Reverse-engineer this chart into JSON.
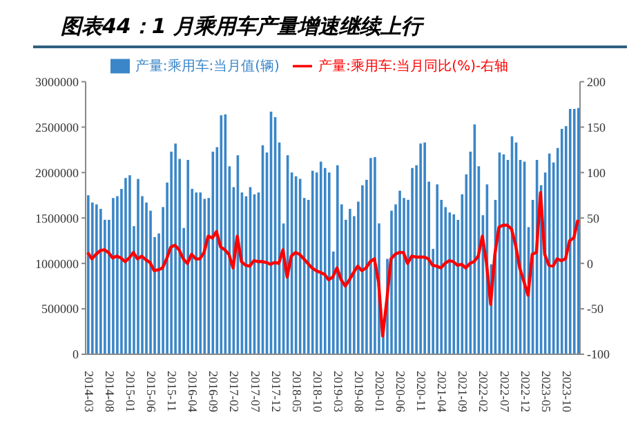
{
  "chart_data": {
    "type": "bar",
    "title": "图表44：1 月乘用车产量增速继续上行",
    "categories": [
      "2014-03",
      null,
      null,
      null,
      null,
      "2014-08",
      null,
      null,
      null,
      null,
      "2015-01",
      null,
      null,
      null,
      null,
      "2015-06",
      null,
      null,
      null,
      null,
      "2015-11",
      null,
      null,
      null,
      null,
      "2016-04",
      null,
      null,
      null,
      null,
      "2016-09",
      null,
      null,
      null,
      null,
      "2017-02",
      null,
      null,
      null,
      null,
      "2017-07",
      null,
      null,
      null,
      null,
      "2017-12",
      null,
      null,
      null,
      null,
      "2018-05",
      null,
      null,
      null,
      null,
      "2018-10",
      null,
      null,
      null,
      null,
      "2019-03",
      null,
      null,
      null,
      null,
      "2019-08",
      null,
      null,
      null,
      null,
      "2020-01",
      null,
      null,
      null,
      null,
      "2020-06",
      null,
      null,
      null,
      null,
      "2020-11",
      null,
      null,
      null,
      null,
      "2021-04",
      null,
      null,
      null,
      null,
      "2021-09",
      null,
      null,
      null,
      null,
      "2022-02",
      null,
      null,
      null,
      null,
      "2022-07",
      null,
      null,
      null,
      null,
      "2022-12",
      null,
      null,
      null,
      null,
      "2023-05",
      null,
      null,
      null,
      null,
      "2023-10",
      null,
      null,
      null
    ],
    "series": [
      {
        "name": "产量:乘用车:当月值(辆)",
        "color": "#3a86c8",
        "values": [
          1750000,
          1670000,
          1650000,
          1600000,
          1480000,
          1480000,
          1720000,
          1740000,
          1820000,
          1940000,
          1970000,
          1410000,
          1930000,
          1740000,
          1670000,
          1580000,
          1290000,
          1330000,
          1620000,
          1890000,
          2230000,
          2320000,
          2150000,
          1390000,
          2140000,
          1820000,
          1780000,
          1780000,
          1710000,
          1720000,
          2230000,
          2280000,
          2630000,
          2640000,
          2070000,
          1840000,
          2190000,
          1780000,
          1740000,
          1840000,
          1760000,
          1780000,
          2300000,
          2220000,
          2670000,
          2610000,
          2330000,
          1440000,
          2190000,
          2000000,
          1960000,
          1930000,
          1720000,
          1700000,
          2020000,
          2000000,
          2120000,
          2050000,
          2000000,
          1130000,
          2080000,
          1650000,
          1480000,
          1600000,
          1520000,
          1680000,
          1860000,
          1920000,
          2160000,
          2170000,
          1440000,
          250000,
          1050000,
          1580000,
          1650000,
          1800000,
          1720000,
          1700000,
          2050000,
          2080000,
          2320000,
          2330000,
          1900000,
          1160000,
          1870000,
          1700000,
          1620000,
          1560000,
          1540000,
          1480000,
          1760000,
          1980000,
          2230000,
          2530000,
          2070000,
          1530000,
          1870000,
          990000,
          1700000,
          2220000,
          2200000,
          2140000,
          2400000,
          2330000,
          2140000,
          2120000,
          1400000,
          1700000,
          2140000,
          1860000,
          2000000,
          2210000,
          2110000,
          2270000,
          2480000,
          2510000,
          2700000,
          2700000,
          2710000
        ]
      },
      {
        "name": "产量:乘用车:当月同比(%)-右轴",
        "type": "line",
        "axis": "y2",
        "color": "#ff0000",
        "values": [
          12,
          5,
          10,
          14,
          15,
          12,
          6,
          8,
          6,
          2,
          6,
          12,
          5,
          8,
          4,
          1,
          -8,
          -7,
          -5,
          5,
          18,
          20,
          15,
          5,
          0,
          10,
          5,
          5,
          12,
          30,
          28,
          35,
          18,
          15,
          10,
          -5,
          30,
          2,
          -2,
          -3,
          3,
          2,
          2,
          1,
          -1,
          1,
          0,
          15,
          -15,
          8,
          12,
          10,
          5,
          0,
          -5,
          -8,
          -10,
          -12,
          -18,
          -15,
          -5,
          -18,
          -25,
          -18,
          -10,
          -3,
          -8,
          -5,
          2,
          5,
          -20,
          -80,
          -40,
          5,
          10,
          12,
          12,
          0,
          8,
          7,
          7,
          7,
          5,
          -2,
          -3,
          -5,
          0,
          3,
          2,
          -2,
          -1,
          -5,
          0,
          2,
          8,
          30,
          0,
          -45,
          10,
          40,
          42,
          42,
          38,
          20,
          -5,
          -20,
          -35,
          10,
          12,
          78,
          10,
          -2,
          -3,
          5,
          3,
          5,
          25,
          28,
          48
        ]
      }
    ],
    "ylim": [
      0,
      3000000
    ],
    "yticks": [
      0,
      500000,
      1000000,
      1500000,
      2000000,
      2500000,
      3000000
    ],
    "y2lim": [
      -100,
      200
    ],
    "y2ticks": [
      -100,
      -50,
      0,
      50,
      100,
      150,
      200
    ],
    "legend": "top",
    "grid": false,
    "marker": "none",
    "line_style": "solid"
  }
}
